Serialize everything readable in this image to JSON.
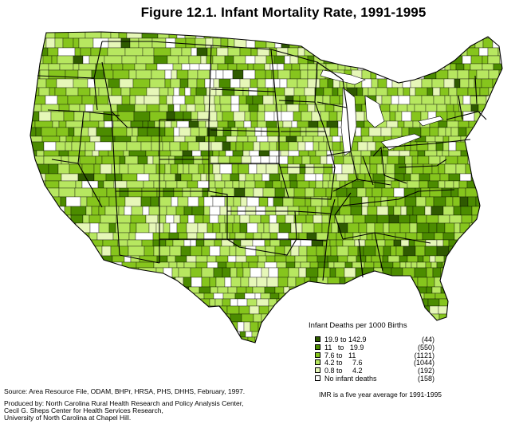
{
  "title": "Figure 12.1.  Infant Mortality Rate, 1991-1995",
  "legend": {
    "title": "Infant Deaths per 1000 Births",
    "placement": "bottom-right",
    "items": [
      {
        "label": "19.9 to 142.9",
        "count": "(44)",
        "color": "#2f5a00"
      },
      {
        "label": "11   to   19.9",
        "count": "(550)",
        "color": "#4c8c00"
      },
      {
        "label": "7.6 to   11",
        "count": "(1121)",
        "color": "#86c51d"
      },
      {
        "label": "4.2 to     7.6",
        "count": "(1044)",
        "color": "#b7e760"
      },
      {
        "label": "0.8 to     4.2",
        "count": "(192)",
        "color": "#e6f7b8"
      },
      {
        "label": "No infant deaths",
        "count": "(158)",
        "color": "#ffffff"
      }
    ]
  },
  "note": "IMR is a five year average for 1991-1995",
  "source": "Source:  Area Resource File, ODAM, BHPr, HRSA, PHS, DHHS, February, 1997.",
  "produced_by": [
    "Produced by: North Carolina Rural Health Research and Policy Analysis Center,",
    "Cecil G. Sheps Center for Health Services Research,",
    "University of North Carolina at Chapel Hill."
  ]
}
